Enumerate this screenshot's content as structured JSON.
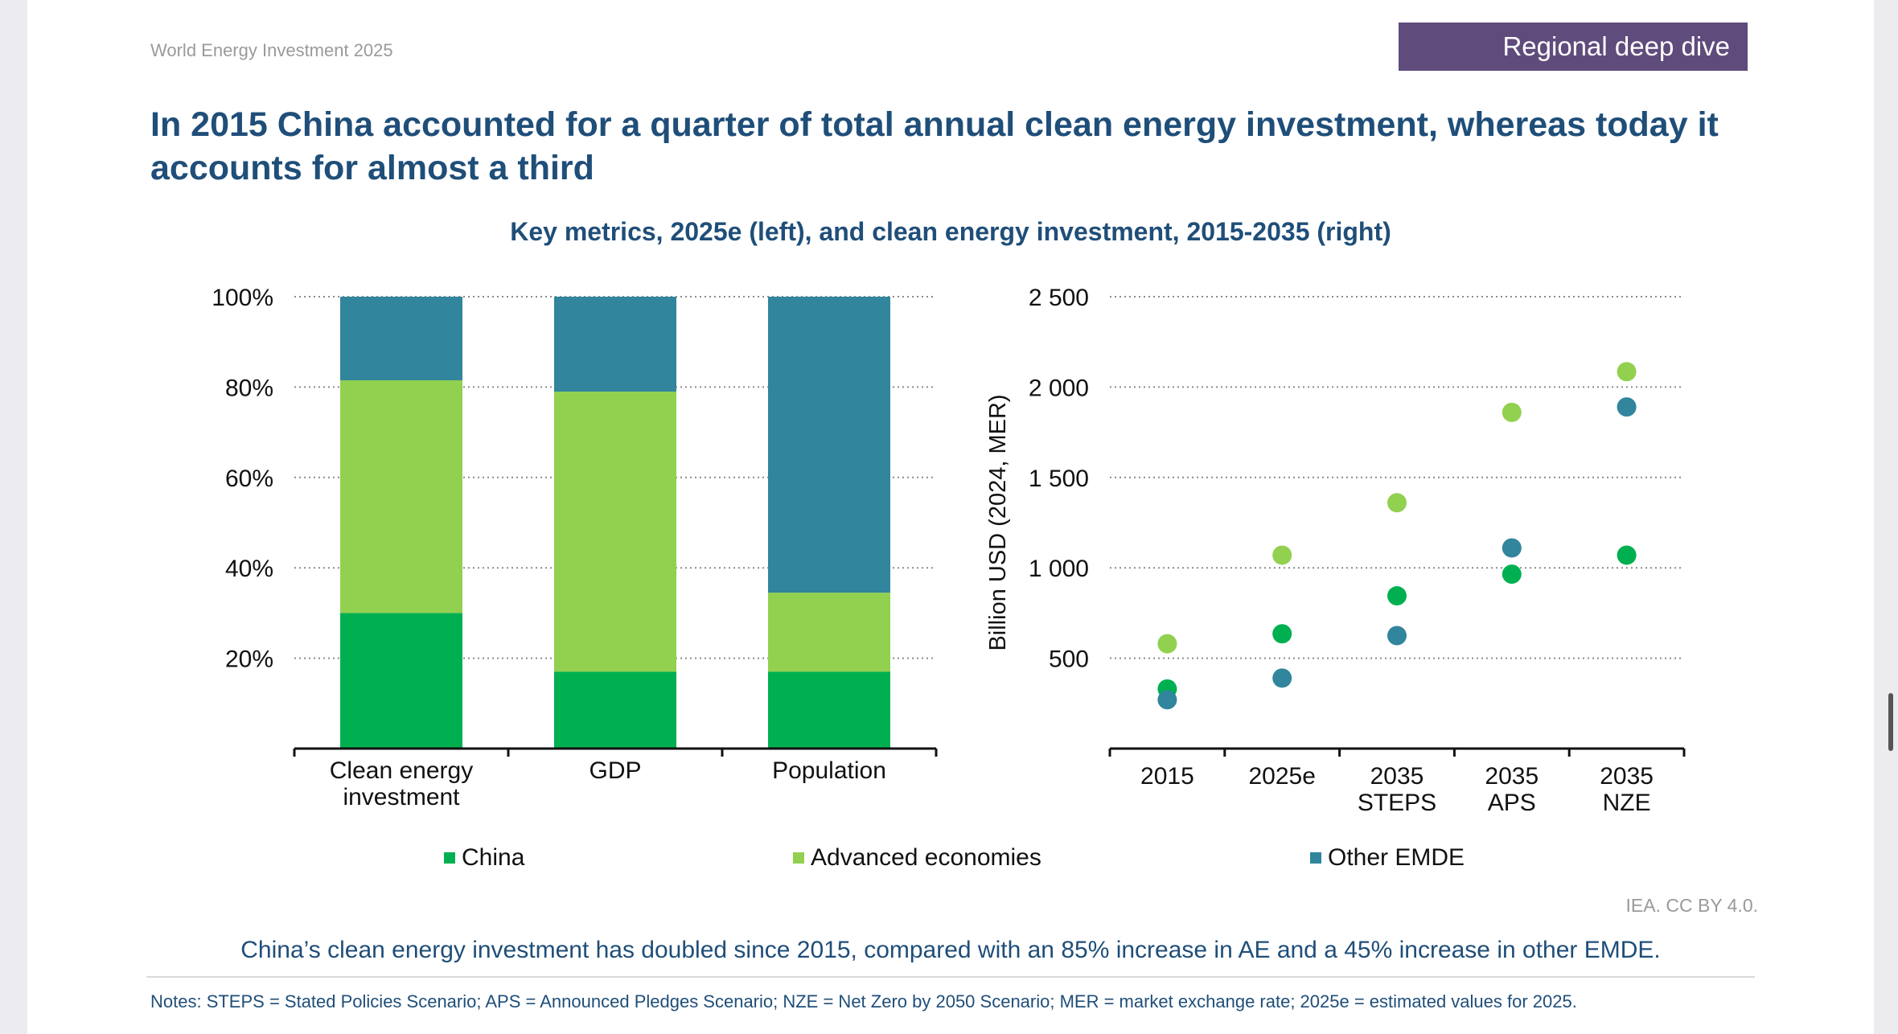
{
  "header": {
    "publication": "World Energy Investment 2025",
    "section_badge": "Regional deep dive"
  },
  "title": "In 2015 China accounted for a quarter of total annual clean energy investment, whereas today it accounts for almost a third",
  "colors": {
    "china": "#00b050",
    "advanced": "#92d050",
    "other_emde": "#31859c",
    "title": "#1f4e79",
    "badge": "#5f4b7c"
  },
  "chart_data": [
    {
      "type": "bar",
      "title": "Key metrics, 2025e (left), and clean energy investment, 2015-2035 (right)",
      "stacked": true,
      "categories": [
        "Clean energy investment",
        "GDP",
        "Population"
      ],
      "category_lines": [
        [
          "Clean energy",
          "investment"
        ],
        [
          "GDP"
        ],
        [
          "Population"
        ]
      ],
      "series": [
        {
          "name": "China",
          "values": [
            30,
            17,
            17
          ]
        },
        {
          "name": "Advanced economies",
          "values": [
            51.5,
            62,
            17.5
          ]
        },
        {
          "name": "Other EMDE",
          "values": [
            18.5,
            21,
            65.5
          ]
        }
      ],
      "ylim": [
        0,
        100
      ],
      "yticks": [
        20,
        40,
        60,
        80,
        100
      ],
      "ytick_labels": [
        "20%",
        "40%",
        "60%",
        "80%",
        "100%"
      ],
      "grid": true
    },
    {
      "type": "scatter",
      "categories": [
        "2015",
        "2025e",
        "2035 STEPS",
        "2035 APS",
        "2035 NZE"
      ],
      "category_lines": [
        [
          "2015"
        ],
        [
          "2025e"
        ],
        [
          "2035",
          "STEPS"
        ],
        [
          "2035",
          "APS"
        ],
        [
          "2035",
          "NZE"
        ]
      ],
      "series": [
        {
          "name": "China",
          "values": [
            330,
            635,
            845,
            965,
            1070
          ]
        },
        {
          "name": "Advanced economies",
          "values": [
            580,
            1070,
            1360,
            1860,
            2085
          ]
        },
        {
          "name": "Other EMDE",
          "values": [
            270,
            390,
            625,
            1110,
            1890
          ]
        }
      ],
      "ylabel": "Billion USD (2024, MER)",
      "ylim": [
        0,
        2500
      ],
      "yticks": [
        500,
        1000,
        1500,
        2000,
        2500
      ],
      "ytick_labels": [
        "500",
        "1 000",
        "1 500",
        "2 000",
        "2 500"
      ],
      "grid": true
    }
  ],
  "legend": [
    "China",
    "Advanced economies",
    "Other EMDE"
  ],
  "credit": "IEA. CC BY 4.0.",
  "caption": "China’s clean energy investment has doubled since 2015, compared with an 85% increase in AE and a 45% increase in other EMDE.",
  "notes": "Notes: STEPS = Stated Policies Scenario; APS = Announced Pledges Scenario; NZE = Net Zero by 2050 Scenario; MER = market exchange rate; 2025e = estimated values for 2025."
}
